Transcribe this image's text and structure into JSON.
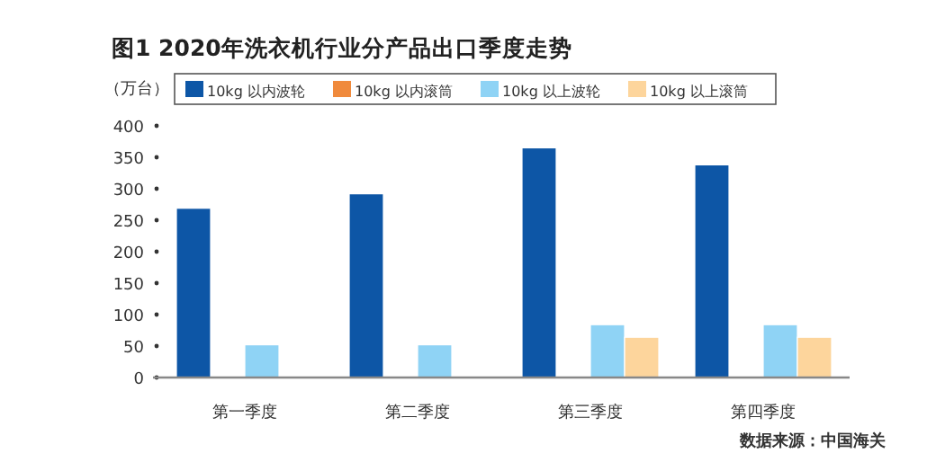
{
  "chart_data": {
    "type": "bar",
    "title": "图1  2020年洗衣机行业分产品出口季度走势",
    "ylabel": "（万台）",
    "categories": [
      "第一季度",
      "第二季度",
      "第三季度",
      "第四季度"
    ],
    "series": [
      {
        "name": "10kg 以内波轮",
        "color": "#0d56a6",
        "values": [
          269,
          292,
          365,
          338
        ]
      },
      {
        "name": "10kg 以内滚筒",
        "color": "#f08a3c",
        "values": [
          null,
          null,
          null,
          null
        ]
      },
      {
        "name": "10kg 以上波轮",
        "color": "#8fd3f5",
        "values": [
          52,
          52,
          84,
          84
        ]
      },
      {
        "name": "10kg 以上滚筒",
        "color": "#fdd59c",
        "values": [
          null,
          null,
          64,
          64
        ]
      }
    ],
    "ylim": [
      0,
      400
    ],
    "yticks": [
      0,
      50,
      100,
      150,
      200,
      250,
      300,
      350,
      400
    ],
    "legend": "top",
    "annotations": [
      "数据来源：中国海关"
    ]
  }
}
